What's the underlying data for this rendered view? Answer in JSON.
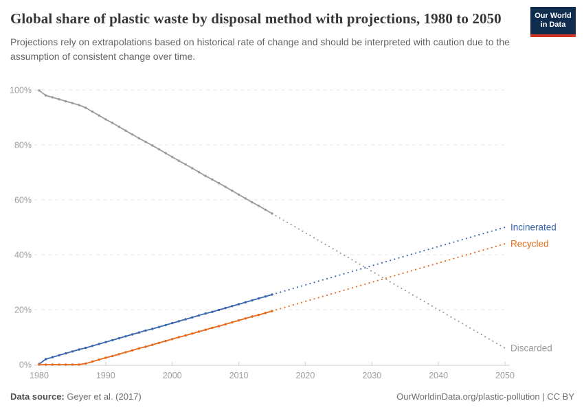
{
  "header": {
    "title": "Global share of plastic waste by disposal method with projections, 1980 to 2050",
    "subtitle": "Projections rely on extrapolations based on historical rate of change and should be interpreted with caution due to the assumption of consistent change over time.",
    "logo": {
      "line1": "Our World",
      "line2": "in Data"
    }
  },
  "footer": {
    "source_label": "Data source:",
    "source_value": " Geyer et al. (2017)",
    "credit": "OurWorldinData.org/plastic-pollution | CC BY"
  },
  "colors": {
    "logo_bg": "#102D4F",
    "logo_accent": "#D2352C",
    "grid": "#E4E4E4",
    "axis": "#CFCFCF",
    "axis_text": "#9E9E9E"
  },
  "chart_data": {
    "type": "line",
    "title": "Global share of plastic waste by disposal method with projections, 1980 to 2050",
    "xlabel": "",
    "ylabel": "",
    "x_range": [
      1980,
      2050
    ],
    "y_range": [
      0,
      100
    ],
    "grid": true,
    "legend_position": "right-inline-labels",
    "projection_start_year": 2015,
    "x_ticks": [
      {
        "value": 1980,
        "label": "1980"
      },
      {
        "value": 1990,
        "label": "1990"
      },
      {
        "value": 2000,
        "label": "2000"
      },
      {
        "value": 2010,
        "label": "2010"
      },
      {
        "value": 2020,
        "label": "2020"
      },
      {
        "value": 2030,
        "label": "2030"
      },
      {
        "value": 2040,
        "label": "2040"
      },
      {
        "value": 2050,
        "label": "2050"
      }
    ],
    "y_ticks": [
      {
        "value": 0,
        "label": "0%"
      },
      {
        "value": 20,
        "label": "20%"
      },
      {
        "value": 40,
        "label": "40%"
      },
      {
        "value": 60,
        "label": "60%"
      },
      {
        "value": 80,
        "label": "80%"
      },
      {
        "value": 100,
        "label": "100%"
      }
    ],
    "series": [
      {
        "name": "Discarded",
        "color": "#9B9B9B",
        "label_color": "#9B9B9B",
        "historical": {
          "start_year": 1980,
          "values": [
            99.8,
            98.0,
            97.3,
            96.6,
            95.9,
            95.2,
            94.5,
            93.5,
            92.1,
            90.7,
            89.3,
            88.0,
            86.6,
            85.2,
            83.8,
            82.4,
            81.1,
            79.8,
            78.4,
            77.0,
            75.6,
            74.2,
            72.9,
            71.5,
            70.1,
            68.7,
            67.4,
            66.1,
            64.7,
            63.3,
            61.9,
            60.5,
            59.1,
            57.8,
            56.4,
            55.0
          ]
        },
        "projection": {
          "years": [
            2015,
            2050
          ],
          "values": [
            55.0,
            6.0
          ]
        }
      },
      {
        "name": "Incinerated",
        "color": "#3A67AD",
        "label_color": "#3360A9",
        "historical": {
          "start_year": 1980,
          "values": [
            0.2,
            2.0,
            2.7,
            3.4,
            4.1,
            4.8,
            5.5,
            6.1,
            6.8,
            7.5,
            8.2,
            8.9,
            9.6,
            10.3,
            11.0,
            11.7,
            12.4,
            13.0,
            13.7,
            14.4,
            15.1,
            15.8,
            16.5,
            17.2,
            17.9,
            18.6,
            19.2,
            19.9,
            20.6,
            21.3,
            22.0,
            22.7,
            23.4,
            24.1,
            24.8,
            25.5
          ]
        },
        "projection": {
          "years": [
            2015,
            2050
          ],
          "values": [
            25.5,
            50.0
          ]
        }
      },
      {
        "name": "Recycled",
        "color": "#E8691B",
        "label_color": "#E56A19",
        "historical": {
          "start_year": 1980,
          "values": [
            0.0,
            0.0,
            0.0,
            0.0,
            0.0,
            0.0,
            0.0,
            0.4,
            1.1,
            1.8,
            2.5,
            3.1,
            3.8,
            4.5,
            5.2,
            5.9,
            6.5,
            7.2,
            7.9,
            8.6,
            9.3,
            10.0,
            10.6,
            11.3,
            12.0,
            12.7,
            13.4,
            14.0,
            14.7,
            15.4,
            16.1,
            16.8,
            17.5,
            18.1,
            18.8,
            19.5
          ]
        },
        "projection": {
          "years": [
            2015,
            2050
          ],
          "values": [
            19.5,
            44.0
          ]
        }
      }
    ]
  }
}
